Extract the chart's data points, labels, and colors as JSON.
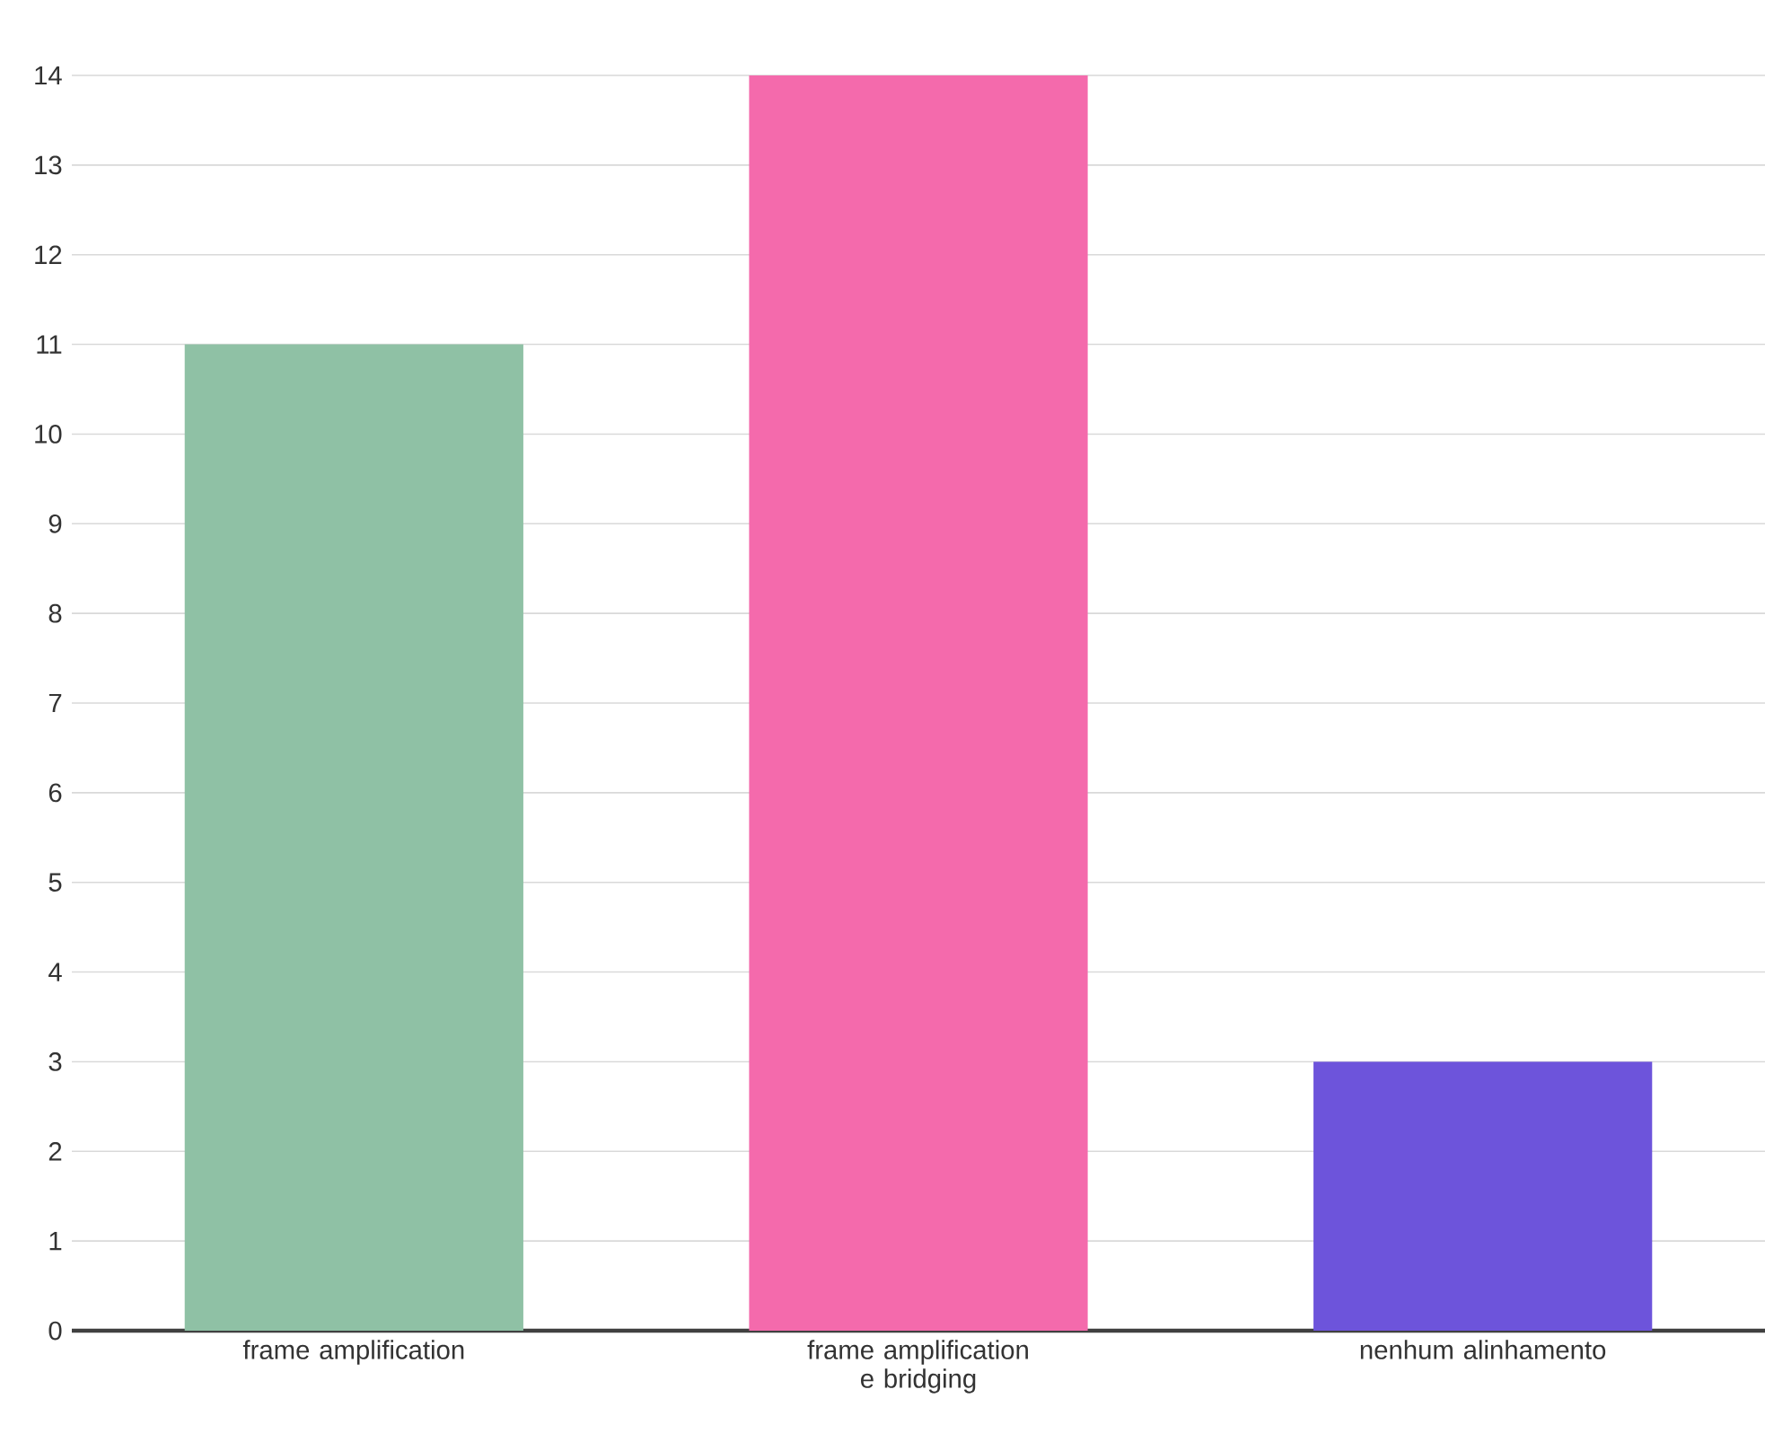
{
  "chart_data": {
    "type": "bar",
    "categories": [
      "frame amplification",
      "frame amplification e bridging",
      "nenhum alinhamento"
    ],
    "values": [
      11,
      14,
      3
    ],
    "colors": [
      "#8fc1a5",
      "#f46aac",
      "#6d54db"
    ],
    "ylim": [
      0,
      14
    ],
    "yticks": [
      0,
      1,
      2,
      3,
      4,
      5,
      6,
      7,
      8,
      9,
      10,
      11,
      12,
      13,
      14
    ],
    "grid": "y"
  }
}
